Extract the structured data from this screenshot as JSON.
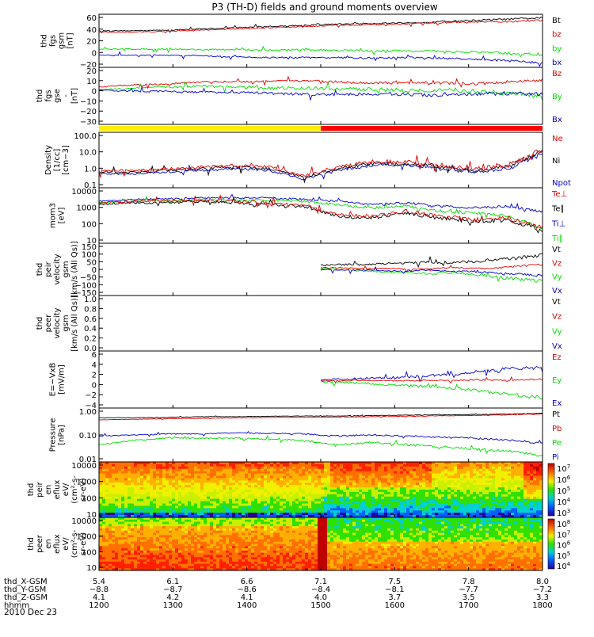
{
  "title": "P3 (TH-D) fields and ground moments overview",
  "colors": {
    "black": "#000000",
    "red": "#e00000",
    "green": "#00dd00",
    "blue": "#0000cc",
    "bar_yellow": "#ffee00",
    "bar_red": "#ff0000"
  },
  "chart_data": {
    "type": "line",
    "x_ticks": [
      "1200",
      "1300",
      "1400",
      "1500",
      "1600",
      "1700",
      "1800"
    ],
    "panels": [
      {
        "ylabel": [
          "thd",
          "fgs",
          "gsm",
          "[nT]"
        ],
        "yticks": [
          "60",
          "40",
          "20",
          "0",
          "−20"
        ],
        "legend": [
          {
            "text": "Bt",
            "color": "black"
          },
          {
            "text": "bz",
            "color": "red"
          },
          {
            "text": "by",
            "color": "green"
          },
          {
            "text": "bx",
            "color": "blue"
          }
        ],
        "ylim": [
          -25,
          62
        ],
        "log": false,
        "series": [
          {
            "color": "black",
            "level": [
              35,
              35,
              36,
              38,
              40,
              42,
              44,
              46,
              47,
              48,
              50,
              52,
              54,
              56
            ],
            "noise": 2
          },
          {
            "color": "red",
            "level": [
              33,
              33,
              34,
              36,
              38,
              40,
              42,
              44,
              45,
              46,
              48,
              49,
              50,
              52
            ],
            "noise": 2
          },
          {
            "color": "green",
            "level": [
              5,
              5,
              5,
              4,
              4,
              3,
              4,
              3,
              2,
              2,
              1,
              0,
              -2,
              -4
            ],
            "noise": 3
          },
          {
            "color": "blue",
            "level": [
              -5,
              -5,
              -5,
              -6,
              -8,
              -9,
              -9,
              -9,
              -10,
              -9,
              -10,
              -12,
              -14,
              -18
            ],
            "noise": 2.5
          }
        ]
      },
      {
        "ylabel": [
          "thd",
          "fgs",
          "gse",
          "-",
          "[nT]"
        ],
        "yticks": [
          "20",
          "10",
          "0",
          "−10",
          "−20",
          "−30"
        ],
        "legend": [
          {
            "text": "Bz",
            "color": "red"
          },
          {
            "text": "By",
            "color": "green"
          },
          {
            "text": "Bx",
            "color": "blue"
          }
        ],
        "ylim": [
          -35,
          20
        ],
        "log": false,
        "series": [
          {
            "color": "green",
            "level": [
              -2,
              0,
              1,
              2,
              1,
              0,
              0,
              -1,
              -1,
              -2,
              -2,
              -3,
              -5,
              -8
            ],
            "noise": 3
          },
          {
            "color": "blue",
            "level": [
              -2,
              -3,
              -3,
              -4,
              -4,
              -5,
              -6,
              -6,
              -6,
              -6,
              -7,
              -6,
              -5,
              -6
            ],
            "noise": 2.5
          },
          {
            "color": "red",
            "level": [
              1,
              3,
              4,
              6,
              6,
              7,
              7,
              6,
              5,
              5,
              5,
              4,
              6,
              8
            ],
            "noise": 2
          }
        ]
      },
      {
        "bar": true,
        "segments": [
          {
            "from": 0,
            "to": 0.5,
            "color": "bar_yellow"
          },
          {
            "from": 0.5,
            "to": 1,
            "color": "bar_red"
          }
        ]
      },
      {
        "ylabel": [
          "Density",
          "[1/cc]",
          "[cm−3]"
        ],
        "yticks": [
          "100.0",
          "10.0",
          "1.0",
          "0.1"
        ],
        "legend": [
          {
            "text": "Ne",
            "color": "red"
          },
          {
            "text": "Ni",
            "color": "black"
          },
          {
            "text": "Npot",
            "color": "blue"
          }
        ],
        "ylim": [
          -1.1,
          2.1
        ],
        "log": true,
        "series": [
          {
            "color": "blue",
            "level": [
              -0.3,
              -0.3,
              -0.2,
              -0.1,
              0,
              -0.1,
              -0.6,
              -0.1,
              0.2,
              0.2,
              0.0,
              -0.2,
              0.0,
              0.9
            ],
            "noise": 0.15
          },
          {
            "color": "black",
            "level": [
              -0.2,
              -0.2,
              -0.1,
              0,
              0.1,
              0,
              -0.5,
              0,
              0.3,
              0.3,
              0.1,
              -0.1,
              0.1,
              1.0
            ],
            "noise": 0.18
          },
          {
            "color": "red",
            "level": [
              -0.1,
              -0.1,
              0,
              0.1,
              0.2,
              0.1,
              -0.4,
              0.1,
              0.4,
              0.4,
              0.2,
              0,
              0.2,
              1.1
            ],
            "noise": 0.2
          }
        ]
      },
      {
        "ylabel": [
          "mom3",
          "[eV]"
        ],
        "yticks": [
          "10000",
          "1000",
          "100",
          "10"
        ],
        "legend": [
          {
            "text": "Te⊥",
            "color": "red"
          },
          {
            "text": "Te∥",
            "color": "black"
          },
          {
            "text": "Ti⊥",
            "color": "blue"
          },
          {
            "text": "Ti∥",
            "color": "green"
          }
        ],
        "ylim": [
          0.8,
          4.1
        ],
        "log": true,
        "series": [
          {
            "color": "blue",
            "level": [
              3.3,
              3.4,
              3.45,
              3.5,
              3.5,
              3.5,
              3.4,
              3.3,
              3.1,
              3.2,
              3.0,
              2.9,
              3.0,
              2.7
            ],
            "noise": 0.12
          },
          {
            "color": "green",
            "level": [
              3.2,
              3.3,
              3.35,
              3.4,
              3.4,
              3.35,
              3.3,
              3.1,
              2.9,
              3.0,
              2.7,
              2.6,
              2.4,
              1.7
            ],
            "noise": 0.12
          },
          {
            "color": "black",
            "level": [
              3.1,
              3.2,
              3.2,
              3.3,
              3.2,
              3.1,
              3.0,
              2.4,
              2.3,
              2.6,
              2.3,
              2.1,
              2.2,
              1.6
            ],
            "noise": 0.18
          },
          {
            "color": "red",
            "level": [
              3.2,
              3.3,
              3.3,
              3.35,
              3.3,
              3.2,
              3.1,
              2.5,
              2.4,
              2.7,
              2.4,
              2.2,
              2.3,
              1.7
            ],
            "noise": 0.18
          }
        ]
      },
      {
        "ylabel": [
          "thd",
          "peir",
          "velocity",
          "gsm",
          "[km/s (All Qs)]"
        ],
        "yticks": [
          "150",
          "100",
          "50",
          "0",
          "−50",
          "−100",
          "−150"
        ],
        "legend": [
          {
            "text": "Vt",
            "color": "black"
          },
          {
            "text": "Vz",
            "color": "red"
          },
          {
            "text": "Vy",
            "color": "green"
          },
          {
            "text": "Vx",
            "color": "blue"
          }
        ],
        "ylim": [
          -160,
          160
        ],
        "log": false,
        "start": 0.5,
        "series": [
          {
            "color": "black",
            "level": [
              25,
              30,
              30,
              35,
              40,
              45,
              40,
              50,
              60,
              70,
              90
            ],
            "noise": 15
          },
          {
            "color": "red",
            "level": [
              10,
              10,
              5,
              5,
              0,
              5,
              10,
              5,
              10,
              20,
              30
            ],
            "noise": 8
          },
          {
            "color": "green",
            "level": [
              5,
              0,
              -10,
              -15,
              -20,
              -25,
              -20,
              -30,
              -50,
              -60,
              -70
            ],
            "noise": 15
          },
          {
            "color": "blue",
            "level": [
              0,
              -5,
              -5,
              -10,
              -10,
              -5,
              -10,
              -15,
              -25,
              -30,
              -40
            ],
            "noise": 10
          }
        ]
      },
      {
        "ylabel": [
          "thd",
          "peer",
          "velocity",
          "gsm",
          "[km/s (All Qs)]"
        ],
        "yticks": [
          "1.0",
          "0.8",
          "0.6",
          "0.4",
          "0.2",
          "0.0"
        ],
        "legend": [
          {
            "text": "Vt",
            "color": "black"
          },
          {
            "text": "Vz",
            "color": "red"
          },
          {
            "text": "Vy",
            "color": "green"
          },
          {
            "text": "Vx",
            "color": "blue"
          }
        ],
        "ylim": [
          0,
          1.05
        ],
        "log": false,
        "series": []
      },
      {
        "ylabel": [
          "E=−VxB",
          "[mV/m]"
        ],
        "yticks": [
          "6",
          "4",
          "2",
          "0",
          "−2",
          "−4"
        ],
        "legend": [
          {
            "text": "Ez",
            "color": "red"
          },
          {
            "text": "Ey",
            "color": "green"
          },
          {
            "text": "Ex",
            "color": "blue"
          }
        ],
        "ylim": [
          -4.5,
          7
        ],
        "log": false,
        "start": 0.5,
        "series": [
          {
            "color": "blue",
            "level": [
              1.2,
              1.3,
              1.5,
              1.6,
              1.8,
              2.0,
              2.3,
              2.8,
              3.3,
              3.6,
              3.5
            ],
            "noise": 0.5
          },
          {
            "color": "green",
            "level": [
              0.8,
              0.6,
              0.5,
              0.2,
              0,
              -0.2,
              -0.5,
              -1,
              -1.5,
              -2,
              -2.5
            ],
            "noise": 0.5
          },
          {
            "color": "red",
            "level": [
              1.0,
              1.0,
              1.1,
              1.0,
              1.0,
              1.1,
              1.0,
              1.2,
              1.1,
              1.2,
              1.3
            ],
            "noise": 0.25
          }
        ]
      },
      {
        "ylabel": [
          "Pressure",
          "[nPa]"
        ],
        "yticks": [
          "1.00",
          "0.10",
          "0.01"
        ],
        "legend": [
          {
            "text": "Pt",
            "color": "black"
          },
          {
            "text": "Pb",
            "color": "red"
          },
          {
            "text": "Pe",
            "color": "green"
          },
          {
            "text": "Pi",
            "color": "blue"
          }
        ],
        "ylim": [
          -2.1,
          0.4
        ],
        "log": true,
        "series": [
          {
            "color": "black",
            "level": [
              -0.05,
              -0.05,
              -0.03,
              0,
              0,
              0.02,
              0.03,
              0.03,
              0.05,
              0.07,
              0.08,
              0.1,
              0.12,
              0.15
            ],
            "noise": 0.02
          },
          {
            "color": "red",
            "level": [
              -0.15,
              -0.12,
              -0.1,
              -0.08,
              -0.06,
              -0.04,
              -0.03,
              -0.02,
              0,
              0.02,
              0.04,
              0.06,
              0.08,
              0.12
            ],
            "noise": 0.02
          },
          {
            "color": "blue",
            "level": [
              -0.9,
              -0.85,
              -0.8,
              -0.8,
              -0.75,
              -0.78,
              -0.8,
              -0.9,
              -0.85,
              -0.9,
              -0.95,
              -1.0,
              -1.1,
              -1.2
            ],
            "noise": 0.06
          },
          {
            "color": "green",
            "level": [
              -1.3,
              -1.1,
              -1.0,
              -1.0,
              -1.0,
              -1.05,
              -1.1,
              -1.3,
              -1.2,
              -1.3,
              -1.4,
              -1.5,
              -1.6,
              -1.8
            ],
            "noise": 0.08
          }
        ]
      },
      {
        "spectrogram": true,
        "ylabel": [
          "thd",
          "peir",
          "en",
          "eflux",
          "eV/",
          "(cm²-s-",
          "sr-eV)"
        ],
        "yticks": [
          "10000",
          "1000",
          "100",
          "10"
        ],
        "cbar_ticks": [
          {
            "base": "10",
            "exp": "7"
          },
          {
            "base": "10",
            "exp": "6"
          },
          {
            "base": "10",
            "exp": "5"
          },
          {
            "base": "10",
            "exp": "4"
          },
          {
            "base": "10",
            "exp": "3"
          }
        ]
      },
      {
        "spectrogram": true,
        "ylabel": [
          "thd",
          "peer",
          "en",
          "eflux",
          "eV/",
          "(cm²-s-",
          "sr-eV)"
        ],
        "yticks": [
          "10000",
          "1000",
          "100",
          "10"
        ],
        "cbar_ticks": [
          {
            "base": "10",
            "exp": "8"
          },
          {
            "base": "10",
            "exp": "7"
          },
          {
            "base": "10",
            "exp": "6"
          },
          {
            "base": "10",
            "exp": "5"
          },
          {
            "base": "10",
            "exp": "4"
          }
        ]
      }
    ],
    "x_axis_rows": [
      {
        "label": "thd_X-GSM",
        "values": [
          "5.4",
          "6.1",
          "6.6",
          "7.1",
          "7.5",
          "7.8",
          "8.0"
        ]
      },
      {
        "label": "thd_Y-GSM",
        "values": [
          "−8.8",
          "−8.7",
          "−8.6",
          "−8.4",
          "−8.1",
          "−7.7",
          "−7.2"
        ]
      },
      {
        "label": "thd_Z-GSM",
        "values": [
          "4.1",
          "4.2",
          "4.1",
          "4.0",
          "3.7",
          "3.5",
          "3.3"
        ]
      },
      {
        "label": "hhmm",
        "values": [
          "1200",
          "1300",
          "1400",
          "1500",
          "1600",
          "1700",
          "1800"
        ]
      }
    ],
    "date": "2010 Dec 23"
  }
}
